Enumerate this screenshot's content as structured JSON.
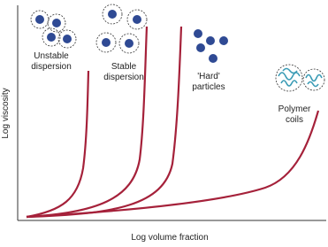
{
  "axes": {
    "y_label": "Log viscosity",
    "x_label": "Log volume fraction"
  },
  "labels": [
    {
      "lines": [
        "Unstable",
        "dispersion"
      ]
    },
    {
      "lines": [
        "Stable",
        "dispersion"
      ]
    },
    {
      "lines": [
        "'Hard'",
        "particles"
      ]
    },
    {
      "lines": [
        "Polymer",
        "coils"
      ]
    }
  ]
}
